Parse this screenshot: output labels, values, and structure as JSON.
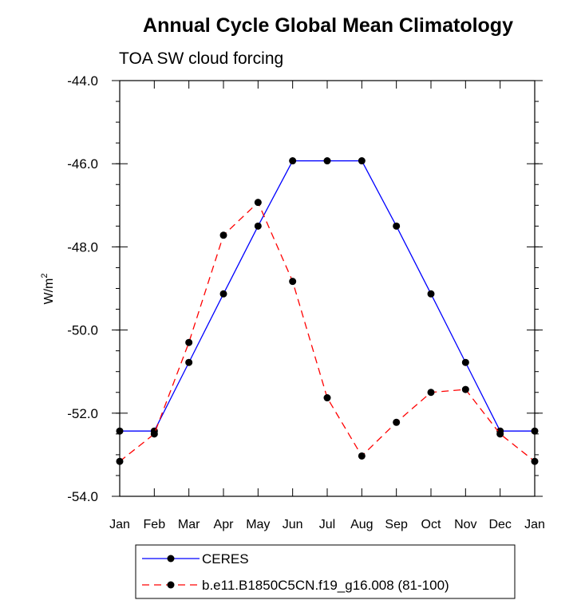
{
  "chart_data": {
    "type": "line",
    "title": "Annual Cycle Global Mean Climatology",
    "subtitle": "TOA SW cloud forcing",
    "xlabel": "",
    "ylabel": "W/m",
    "ylabel_superscript": "2",
    "categories": [
      "Jan",
      "Feb",
      "Mar",
      "Apr",
      "May",
      "Jun",
      "Jul",
      "Aug",
      "Sep",
      "Oct",
      "Nov",
      "Dec",
      "Jan"
    ],
    "yticks": [
      "-44.0",
      "-46.0",
      "-48.0",
      "-50.0",
      "-52.0",
      "-54.0"
    ],
    "ylim": [
      -54.0,
      -44.0
    ],
    "series": [
      {
        "name": "CERES",
        "color": "#0000ff",
        "dash": "solid",
        "values": [
          -52.43,
          -52.43,
          -50.78,
          -49.13,
          -47.5,
          -45.93,
          -45.93,
          -45.93,
          -47.5,
          -49.13,
          -50.78,
          -52.43,
          -52.43
        ]
      },
      {
        "name": "b.e11.B1850C5CN.f19_g16.008 (81-100)",
        "color": "#ff0000",
        "dash": "dashed",
        "values": [
          -53.16,
          -52.5,
          -50.3,
          -47.72,
          -46.93,
          -48.83,
          -51.63,
          -53.03,
          -52.22,
          -51.5,
          -51.43,
          -52.5,
          -53.16
        ]
      }
    ],
    "legend_position": "bottom"
  }
}
